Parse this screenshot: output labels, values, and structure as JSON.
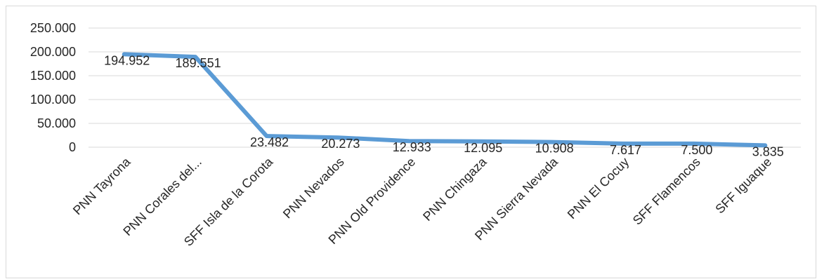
{
  "chart_data": {
    "type": "line",
    "title": "",
    "xlabel": "",
    "ylabel": "",
    "categories": [
      "PNN Tayrona",
      "PNN Corales del...",
      "SFF Isla de la Corota",
      "PNN Nevados",
      "PNN Old Providence",
      "PNN Chingaza",
      "PNN Sierra Nevada",
      "PNN El Cocuy",
      "SFF Flamencos",
      "SFF Iguaque"
    ],
    "series": [
      {
        "values": [
          194952,
          189551,
          23482,
          20273,
          12933,
          12095,
          10908,
          7617,
          7500,
          3835
        ],
        "labels": [
          "194.952",
          "189.551",
          "23.482",
          "20.273",
          "12.933",
          "12.095",
          "10.908",
          "7.617",
          "7.500",
          "3.835"
        ],
        "color": "#5b9bd5"
      }
    ],
    "y_ticks": [
      0,
      50000,
      100000,
      150000,
      200000,
      250000
    ],
    "y_tick_labels": [
      "0",
      "50.000",
      "100.000",
      "150.000",
      "200.000",
      "250.000"
    ],
    "ylim": [
      0,
      250000
    ],
    "grid": true,
    "legend": "none",
    "colors": {
      "line": "#5b9bd5",
      "grid": "#d9d9d9",
      "text": "#262626"
    }
  }
}
